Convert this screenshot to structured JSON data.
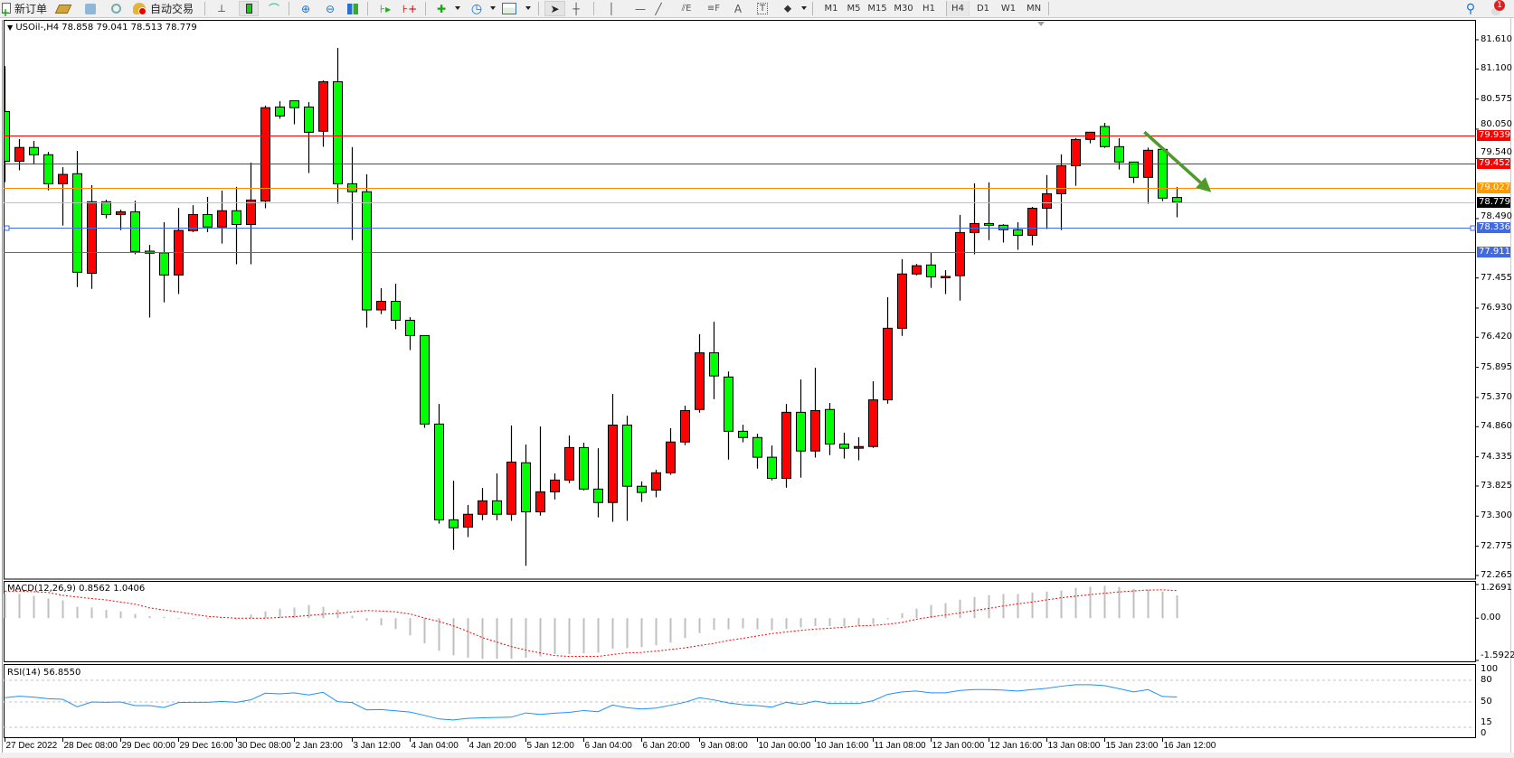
{
  "toolbar": {
    "new_order_label": "新订单",
    "auto_trading_label": "自动交易",
    "timeframes": [
      "M1",
      "M5",
      "M15",
      "M30",
      "H1",
      "H4",
      "D1",
      "W1",
      "MN"
    ],
    "active_timeframe": "H4",
    "notification_count": "1",
    "icons": [
      "new-order-icon",
      "gold-icon",
      "market-watch-icon",
      "signals-icon",
      "auto-trading-icon",
      "bar-chart-icon",
      "candlestick-icon",
      "line-chart-icon",
      "zoom-in-icon",
      "zoom-out-icon",
      "tile-windows-icon",
      "chart-shift-icon",
      "auto-scroll-icon",
      "indicators-icon",
      "periods-icon",
      "templates-icon",
      "cursor-icon",
      "crosshair-icon",
      "vertical-line-icon",
      "horizontal-line-icon",
      "trendline-icon",
      "equidistant-channel-icon",
      "fibonacci-icon",
      "text-icon",
      "text-label-icon",
      "arrows-icon",
      "search-icon",
      "notification-icon"
    ]
  },
  "chart": {
    "header": "USOil-,H4  78.858 79.041 78.513 78.779",
    "colors": {
      "bull": "#ff0000",
      "bear": "#00ff00",
      "wick": "#000000",
      "macd_hist": "#c0c0c0",
      "macd_signal": "#ff0000",
      "rsi": "#1e90ff",
      "arrow": "#4e9a2a"
    },
    "price_ticks": [
      "81.610",
      "81.100",
      "80.575",
      "80.050",
      "79.540",
      "78.490",
      "77.455",
      "76.930",
      "76.420",
      "75.895",
      "75.370",
      "74.860",
      "74.335",
      "73.825",
      "73.300",
      "72.775",
      "72.265"
    ],
    "horizontal_lines": [
      {
        "price": "79.939",
        "color": "#ff0000",
        "label_bg": "#ff0000"
      },
      {
        "price": "79.452",
        "color": "#ff0000",
        "label_bg": "#ff0000"
      },
      {
        "price": "79.027",
        "color": "#ff8c00",
        "label_bg": "#ff9900"
      },
      {
        "price": "78.779",
        "color": "#c0c0c0",
        "label_bg": "#000000"
      },
      {
        "price": "78.336",
        "color": "#4169e1",
        "label_bg": "#4169e1"
      },
      {
        "price": "77.911",
        "color": "#4169e1",
        "label_bg": "#4169e1"
      }
    ],
    "x_labels": [
      {
        "bar": 0,
        "label": "27 Dec 2022"
      },
      {
        "bar": 4,
        "label": "28 Dec 08:00"
      },
      {
        "bar": 8,
        "label": "29 Dec 00:00"
      },
      {
        "bar": 12,
        "label": "29 Dec 16:00"
      },
      {
        "bar": 16,
        "label": "30 Dec 08:00"
      },
      {
        "bar": 20,
        "label": "2 Jan 23:00"
      },
      {
        "bar": 24,
        "label": "3 Jan 12:00"
      },
      {
        "bar": 28,
        "label": "4 Jan 04:00"
      },
      {
        "bar": 32,
        "label": "4 Jan 20:00"
      },
      {
        "bar": 36,
        "label": "5 Jan 12:00"
      },
      {
        "bar": 40,
        "label": "6 Jan 04:00"
      },
      {
        "bar": 44,
        "label": "6 Jan 20:00"
      },
      {
        "bar": 48,
        "label": "9 Jan 08:00"
      },
      {
        "bar": 52,
        "label": "10 Jan 00:00"
      },
      {
        "bar": 56,
        "label": "10 Jan 16:00"
      },
      {
        "bar": 60,
        "label": "11 Jan 08:00"
      },
      {
        "bar": 64,
        "label": "12 Jan 00:00"
      },
      {
        "bar": 68,
        "label": "12 Jan 16:00"
      },
      {
        "bar": 72,
        "label": "13 Jan 08:00"
      },
      {
        "bar": 76,
        "label": "15 Jan 23:00"
      },
      {
        "bar": 80,
        "label": "16 Jan 12:00"
      }
    ]
  },
  "macd": {
    "label": "MACD(12,26,9) 0.8562 1.0406",
    "ticks": [
      "1.2691",
      "0.00",
      "-1.5922"
    ],
    "range": [
      -1.5922,
      1.2691
    ]
  },
  "rsi": {
    "label": "RSI(14) 56.8550",
    "ticks": [
      "100",
      "80",
      "50",
      "15",
      "0"
    ],
    "levels": [
      80,
      50,
      15
    ],
    "range": [
      0,
      100
    ]
  },
  "chart_data": [
    {
      "type": "candlestick",
      "symbol": "USOil-",
      "timeframe": "H4",
      "ylim": [
        72.265,
        81.61
      ],
      "ohlc": [
        [
          80.358,
          81.148,
          79.128,
          79.49
        ],
        [
          79.49,
          79.876,
          79.333,
          79.731
        ],
        [
          79.731,
          79.846,
          79.442,
          79.604
        ],
        [
          79.604,
          79.653,
          78.983,
          79.098
        ],
        [
          79.098,
          79.387,
          78.368,
          79.261
        ],
        [
          79.273,
          79.671,
          77.295,
          77.554
        ],
        [
          77.536,
          79.074,
          77.264,
          78.784
        ],
        [
          78.784,
          78.82,
          78.495,
          78.561
        ],
        [
          78.561,
          78.645,
          78.29,
          78.609
        ],
        [
          78.609,
          78.802,
          77.867,
          77.916
        ],
        [
          77.922,
          78.03,
          76.764,
          77.886
        ],
        [
          77.892,
          78.428,
          77.029,
          77.506
        ],
        [
          77.506,
          78.676,
          77.174,
          78.284
        ],
        [
          78.278,
          78.724,
          78.254,
          78.561
        ],
        [
          78.561,
          78.869,
          78.254,
          78.344
        ],
        [
          78.344,
          78.977,
          78.054,
          78.627
        ],
        [
          78.627,
          79.043,
          77.693,
          78.386
        ],
        [
          78.386,
          79.466,
          77.693,
          78.814
        ],
        [
          78.796,
          80.461,
          78.67,
          80.425
        ],
        [
          80.437,
          80.539,
          80.232,
          80.28
        ],
        [
          80.545,
          80.545,
          80.135,
          80.425
        ],
        [
          80.437,
          80.521,
          79.285,
          79.996
        ],
        [
          80.014,
          80.901,
          79.743,
          80.877
        ],
        [
          80.877,
          81.468,
          78.748,
          79.098
        ],
        [
          79.098,
          79.737,
          78.115,
          78.959
        ],
        [
          78.959,
          79.261,
          76.589,
          76.897
        ],
        [
          76.897,
          77.276,
          76.824,
          77.047
        ],
        [
          77.047,
          77.355,
          76.559,
          76.716
        ],
        [
          76.716,
          76.77,
          76.197,
          76.45
        ],
        [
          76.45,
          76.45,
          74.84,
          74.906
        ],
        [
          74.906,
          75.256,
          73.169,
          73.236
        ],
        [
          73.236,
          73.917,
          72.711,
          73.097
        ],
        [
          73.109,
          73.495,
          72.934,
          73.332
        ],
        [
          73.332,
          73.79,
          73.229,
          73.567
        ],
        [
          73.567,
          74.044,
          73.229,
          73.332
        ],
        [
          73.332,
          74.882,
          73.217,
          74.243
        ],
        [
          74.231,
          74.55,
          72.434,
          73.374
        ],
        [
          73.374,
          74.864,
          73.308,
          73.724
        ],
        [
          73.724,
          74.044,
          73.591,
          73.929
        ],
        [
          73.929,
          74.707,
          73.875,
          74.496
        ],
        [
          74.496,
          74.581,
          73.748,
          73.772
        ],
        [
          73.772,
          74.484,
          73.278,
          73.537
        ],
        [
          73.537,
          75.431,
          73.199,
          74.888
        ],
        [
          74.888,
          75.051,
          73.217,
          73.821
        ],
        [
          73.821,
          73.905,
          73.549,
          73.712
        ],
        [
          73.754,
          74.11,
          73.628,
          74.056
        ],
        [
          74.056,
          74.834,
          74.02,
          74.593
        ],
        [
          74.593,
          75.226,
          74.538,
          75.141
        ],
        [
          75.16,
          76.474,
          75.105,
          76.149
        ],
        [
          76.149,
          76.691,
          75.34,
          75.745
        ],
        [
          75.727,
          75.823,
          74.285,
          74.78
        ],
        [
          74.78,
          74.894,
          74.587,
          74.671
        ],
        [
          74.671,
          74.737,
          74.128,
          74.327
        ],
        [
          74.327,
          74.532,
          73.923,
          73.959
        ],
        [
          73.959,
          75.256,
          73.796,
          75.111
        ],
        [
          75.111,
          75.684,
          73.971,
          74.436
        ],
        [
          74.436,
          75.889,
          74.321,
          75.141
        ],
        [
          75.16,
          75.274,
          74.363,
          74.557
        ],
        [
          74.557,
          74.756,
          74.303,
          74.484
        ],
        [
          74.484,
          74.677,
          74.273,
          74.514
        ],
        [
          74.514,
          75.654,
          74.49,
          75.328
        ],
        [
          75.328,
          77.12,
          75.262,
          76.577
        ],
        [
          76.577,
          77.783,
          76.444,
          77.524
        ],
        [
          77.524,
          77.699,
          77.5,
          77.668
        ],
        [
          77.681,
          77.904,
          77.282,
          77.475
        ],
        [
          77.475,
          77.59,
          77.174,
          77.481
        ],
        [
          77.494,
          78.555,
          77.059,
          78.247
        ],
        [
          78.247,
          79.104,
          77.867,
          78.404
        ],
        [
          78.404,
          79.122,
          78.115,
          78.374
        ],
        [
          78.374,
          78.392,
          78.073,
          78.296
        ],
        [
          78.296,
          78.428,
          77.946,
          78.199
        ],
        [
          78.199,
          78.694,
          78.024,
          78.67
        ],
        [
          78.67,
          79.249,
          78.308,
          78.923
        ],
        [
          78.923,
          79.61,
          78.29,
          79.412
        ],
        [
          79.412,
          79.894,
          79.062,
          79.87
        ],
        [
          79.871,
          79.997,
          79.803,
          79.997
        ],
        [
          80.097,
          80.16,
          79.724,
          79.745
        ],
        [
          79.745,
          79.892,
          79.346,
          79.477
        ],
        [
          79.477,
          79.477,
          79.11,
          79.209
        ],
        [
          79.209,
          79.729,
          78.747,
          79.682
        ],
        [
          79.698,
          79.729,
          78.794,
          78.847
        ],
        [
          78.858,
          79.041,
          78.513,
          78.779
        ]
      ],
      "annotation": {
        "type": "arrow",
        "direction": "down-right",
        "from_bar": 79,
        "from_price": 80.0,
        "to_bar": 83,
        "to_price": 78.95
      }
    },
    {
      "type": "bar+line",
      "indicator": "MACD(12,26,9)",
      "ylim": [
        -1.5922,
        1.2691
      ],
      "histogram": [
        0.92,
        0.92,
        0.84,
        0.74,
        0.67,
        0.43,
        0.4,
        0.31,
        0.26,
        0.16,
        0.08,
        0.05,
        -0.03,
        -0.03,
        -0.03,
        -0.02,
        -0.04,
        0.14,
        0.26,
        0.36,
        0.4,
        0.5,
        0.43,
        0.32,
        0.09,
        -0.09,
        -0.27,
        -0.41,
        -0.65,
        -0.95,
        -1.23,
        -1.4,
        -1.49,
        -1.53,
        -1.53,
        -1.53,
        -1.49,
        -1.44,
        -1.35,
        -1.35,
        -1.32,
        -1.3,
        -1.15,
        -1.13,
        -1.09,
        -1.02,
        -0.92,
        -0.75,
        -0.56,
        -0.44,
        -0.42,
        -0.38,
        -0.42,
        -0.45,
        -0.4,
        -0.35,
        -0.3,
        -0.3,
        -0.3,
        -0.29,
        -0.22,
        -0.04,
        0.19,
        0.36,
        0.5,
        0.57,
        0.7,
        0.8,
        0.87,
        0.91,
        0.91,
        0.97,
        1.0,
        1.04,
        1.14,
        1.18,
        1.22,
        1.18,
        1.1,
        1.08,
        1.01,
        0.8562
      ],
      "signal": [
        1.02,
        1.02,
        1.0,
        0.97,
        0.86,
        0.8,
        0.74,
        0.69,
        0.61,
        0.53,
        0.39,
        0.31,
        0.24,
        0.15,
        0.07,
        0.03,
        0.0,
        0.0,
        0.0,
        0.03,
        0.06,
        0.1,
        0.15,
        0.18,
        0.24,
        0.29,
        0.27,
        0.24,
        0.16,
        0.01,
        -0.12,
        -0.29,
        -0.5,
        -0.73,
        -0.9,
        -1.07,
        -1.2,
        -1.31,
        -1.41,
        -1.44,
        -1.44,
        -1.44,
        -1.37,
        -1.31,
        -1.29,
        -1.24,
        -1.18,
        -1.12,
        -1.03,
        -0.95,
        -0.84,
        -0.76,
        -0.67,
        -0.58,
        -0.52,
        -0.46,
        -0.41,
        -0.38,
        -0.34,
        -0.29,
        -0.27,
        -0.23,
        -0.16,
        -0.04,
        0.05,
        0.12,
        0.2,
        0.29,
        0.37,
        0.46,
        0.54,
        0.61,
        0.69,
        0.77,
        0.83,
        0.89,
        0.94,
        0.99,
        1.03,
        1.06,
        1.07,
        1.0406
      ]
    },
    {
      "type": "line",
      "indicator": "RSI(14)",
      "ylim": [
        0,
        100
      ],
      "values": [
        55.9,
        58.0,
        56.7,
        54.6,
        53.8,
        43.3,
        50.0,
        49.6,
        50.0,
        45.0,
        45.0,
        42.4,
        49.2,
        49.6,
        49.6,
        50.8,
        49.6,
        52.9,
        62.2,
        61.3,
        62.6,
        59.7,
        63.4,
        50.4,
        49.2,
        39.1,
        39.5,
        37.8,
        36.1,
        31.5,
        26.5,
        25.2,
        27.3,
        28.2,
        28.6,
        29.0,
        34.9,
        32.8,
        34.5,
        35.7,
        38.2,
        36.6,
        45.8,
        42.0,
        40.3,
        41.6,
        45.4,
        49.6,
        55.9,
        52.9,
        48.7,
        46.2,
        45.0,
        42.9,
        49.6,
        46.6,
        51.3,
        47.9,
        47.9,
        47.9,
        51.7,
        60.5,
        63.9,
        65.1,
        62.6,
        62.6,
        66.0,
        67.2,
        67.2,
        66.4,
        65.1,
        67.2,
        68.9,
        71.8,
        73.9,
        73.9,
        72.7,
        68.5,
        63.9,
        67.2,
        57.6,
        56.855
      ]
    }
  ]
}
